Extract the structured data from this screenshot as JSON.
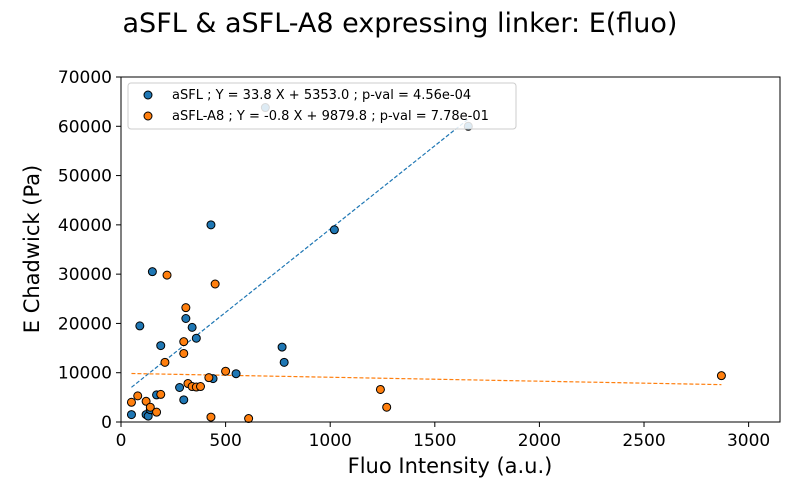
{
  "chart_data": {
    "type": "scatter",
    "title": "aSFL & aSFL-A8 expressing linker: E(fluo)",
    "xlabel": "Fluo Intensity (a.u.)",
    "ylabel": "E Chadwick (Pa)",
    "xlim": [
      0,
      3150
    ],
    "ylim": [
      0,
      70000
    ],
    "xticks": [
      0,
      500,
      1000,
      1500,
      2000,
      2500,
      3000
    ],
    "yticks": [
      0,
      10000,
      20000,
      30000,
      40000,
      50000,
      60000,
      70000
    ],
    "grid": false,
    "legend_position": "top-left",
    "series": [
      {
        "name": "aSFL ; Y = 33.8 X + 5353.0 ; p-val = 4.56e-04",
        "color": "#1f77b4",
        "fit": {
          "slope": 33.8,
          "intercept": 5353.0,
          "x_range": [
            50,
            1660
          ]
        },
        "x": [
          50,
          90,
          120,
          130,
          140,
          150,
          170,
          190,
          280,
          300,
          310,
          340,
          360,
          430,
          440,
          550,
          690,
          770,
          780,
          1020,
          1660
        ],
        "y": [
          1500,
          19500,
          1500,
          1200,
          2500,
          30500,
          5500,
          15500,
          7000,
          4500,
          21000,
          19200,
          17000,
          40000,
          8800,
          9800,
          63800,
          15200,
          12100,
          39000,
          60000
        ]
      },
      {
        "name": "aSFL-A8 ; Y = -0.8 X + 9879.8 ; p-val = 7.78e-01",
        "color": "#ff7f0e",
        "fit": {
          "slope": -0.8,
          "intercept": 9879.8,
          "x_range": [
            50,
            2870
          ]
        },
        "x": [
          50,
          80,
          120,
          140,
          170,
          190,
          210,
          220,
          300,
          300,
          310,
          320,
          340,
          360,
          380,
          420,
          430,
          450,
          500,
          610,
          1240,
          1270,
          2870
        ],
        "y": [
          4000,
          5300,
          4200,
          3000,
          2000,
          5600,
          12100,
          29800,
          13900,
          16300,
          23200,
          7800,
          7200,
          7100,
          7200,
          9000,
          1000,
          28000,
          10300,
          700,
          6600,
          3000,
          9400
        ]
      }
    ]
  }
}
